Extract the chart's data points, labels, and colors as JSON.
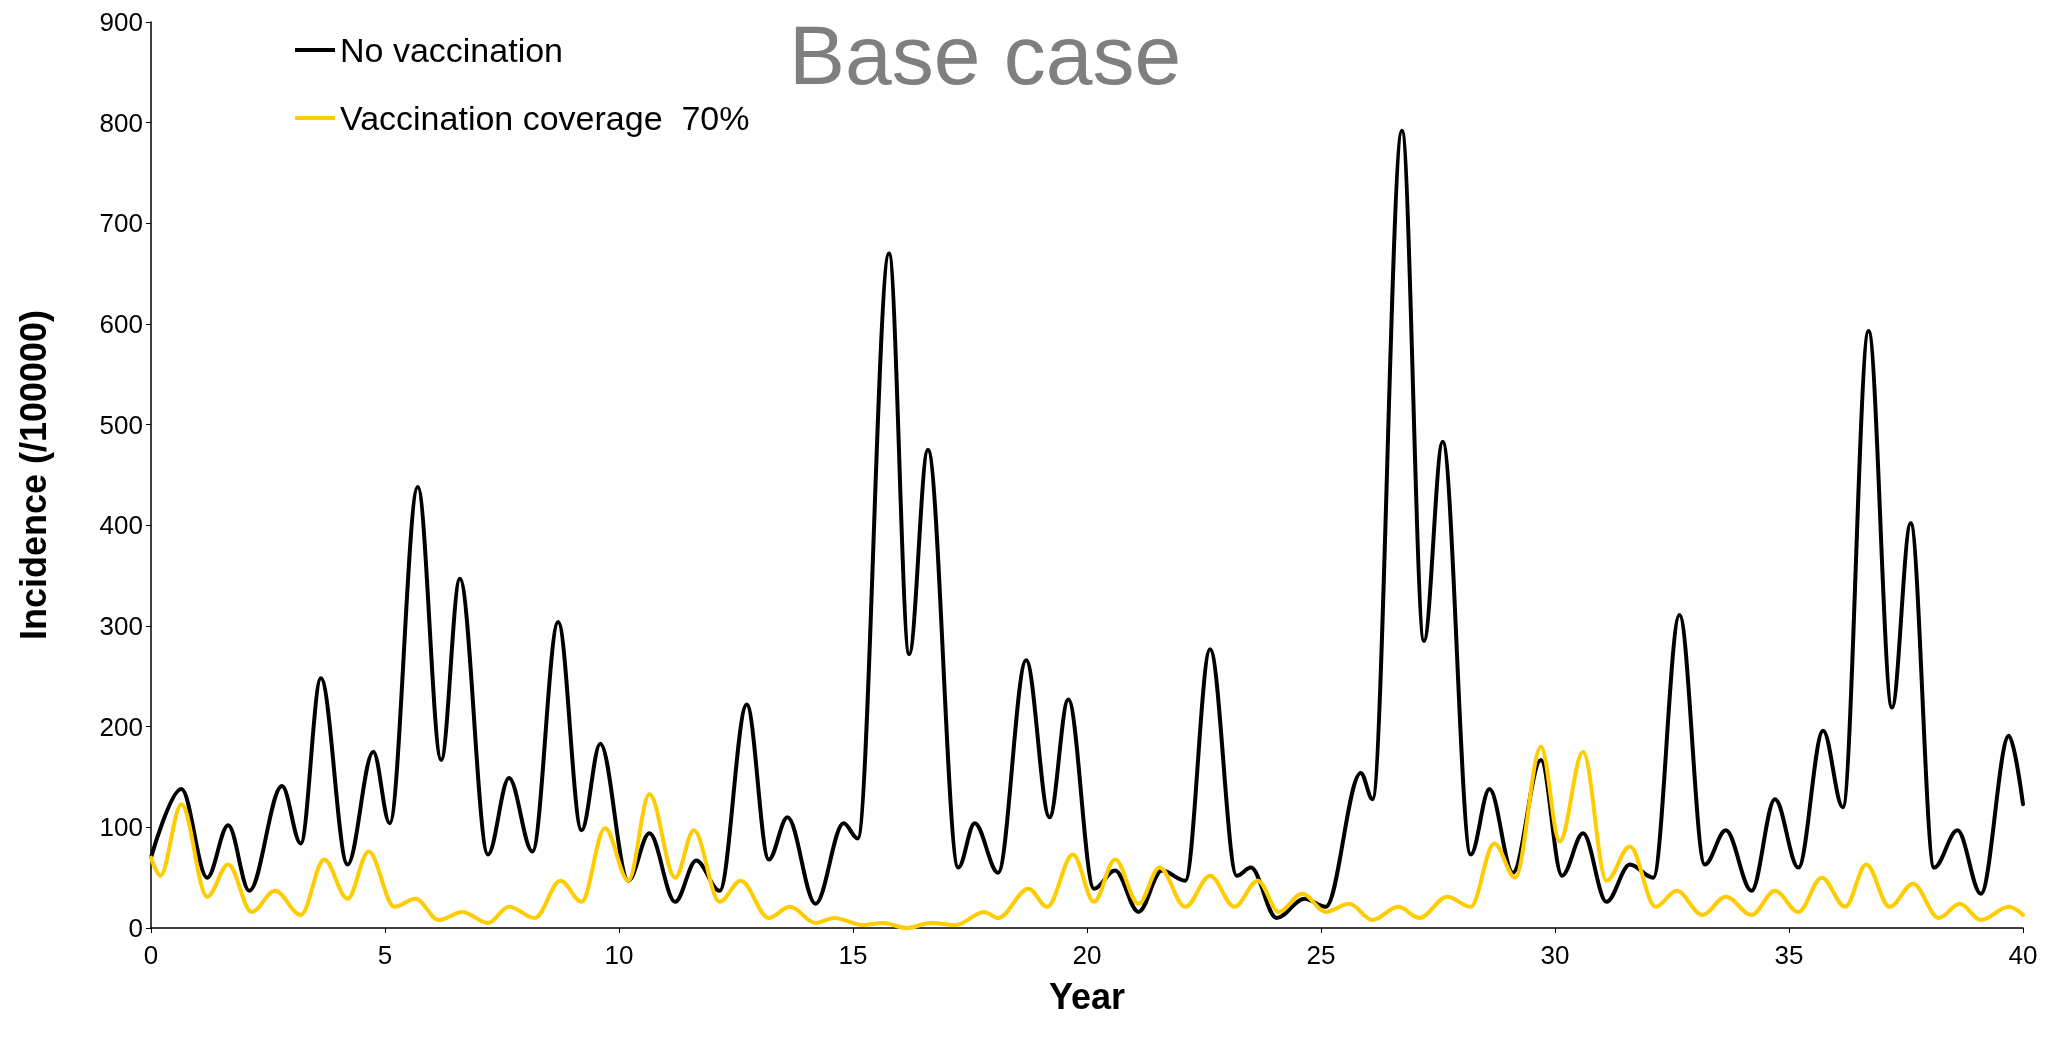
{
  "chart_data": {
    "type": "line",
    "title": "Base case",
    "xlabel": "Year",
    "ylabel": "Incidence (/100000)",
    "xlim": [
      0,
      40
    ],
    "xticks": [
      0,
      5,
      10,
      15,
      20,
      25,
      30,
      35,
      40
    ],
    "ylim": [
      0,
      900
    ],
    "yticks": [
      0,
      100,
      200,
      300,
      400,
      500,
      600,
      700,
      800,
      900
    ],
    "grid": false,
    "legend": "top left",
    "marker": "none",
    "line_style": "solid",
    "series": [
      {
        "name": "No vaccination",
        "color": "#000000",
        "x": [
          0,
          0.65,
          1.2,
          1.65,
          2.1,
          2.8,
          3.2,
          3.63,
          4.2,
          4.75,
          5.1,
          5.7,
          6.2,
          6.6,
          7.2,
          7.65,
          8.15,
          8.7,
          9.2,
          9.6,
          10.2,
          10.65,
          11.2,
          11.65,
          12.15,
          12.73,
          13.2,
          13.6,
          14.2,
          14.8,
          15.1,
          15.77,
          16.2,
          16.6,
          17.25,
          17.6,
          18.1,
          18.7,
          19.2,
          19.6,
          20.15,
          20.6,
          21.1,
          21.6,
          22.1,
          22.63,
          23.2,
          23.5,
          24.05,
          24.65,
          25.1,
          25.85,
          26.1,
          26.73,
          27.2,
          27.6,
          28.2,
          28.6,
          29.1,
          29.7,
          30.15,
          30.6,
          31.1,
          31.6,
          32.1,
          32.66,
          33.2,
          33.65,
          34.2,
          34.7,
          35.2,
          35.73,
          36.15,
          36.7,
          37.2,
          37.6,
          38.1,
          38.6,
          39.1,
          39.7,
          40
        ],
        "values": [
          70,
          138,
          50,
          102,
          37,
          141,
          84,
          248,
          63,
          175,
          104,
          438,
          167,
          347,
          73,
          149,
          76,
          304,
          97,
          183,
          47,
          94,
          26,
          67,
          37,
          222,
          68,
          110,
          24,
          104,
          89,
          670,
          272,
          475,
          60,
          104,
          55,
          266,
          110,
          227,
          39,
          57,
          16,
          57,
          47,
          277,
          52,
          60,
          10,
          29,
          21,
          154,
          128,
          792,
          285,
          483,
          73,
          138,
          55,
          167,
          52,
          94,
          26,
          63,
          50,
          311,
          63,
          97,
          37,
          128,
          60,
          196,
          120,
          593,
          219,
          402,
          60,
          97,
          34,
          191,
          123
        ]
      },
      {
        "name": "Vaccination coverage  70%",
        "color": "#ffcc00",
        "x": [
          0,
          0.2,
          0.65,
          1.2,
          1.65,
          2.15,
          2.65,
          3.2,
          3.7,
          4.2,
          4.65,
          5.2,
          5.65,
          6.15,
          6.65,
          7.2,
          7.65,
          8.2,
          8.75,
          9.2,
          9.7,
          10.2,
          10.65,
          11.2,
          11.6,
          12.15,
          12.6,
          13.2,
          13.65,
          14.2,
          14.6,
          15.2,
          15.65,
          16.15,
          16.65,
          17.2,
          17.8,
          18.1,
          18.75,
          19.15,
          19.7,
          20.15,
          20.6,
          21.1,
          21.55,
          22.1,
          22.63,
          23.15,
          23.65,
          24.1,
          24.6,
          25.1,
          25.6,
          26.1,
          26.65,
          27.1,
          27.7,
          28.2,
          28.7,
          29.15,
          29.7,
          30.1,
          30.6,
          31.1,
          31.6,
          32.15,
          32.6,
          33.15,
          33.65,
          34.2,
          34.7,
          35.2,
          35.7,
          36.2,
          36.65,
          37.15,
          37.65,
          38.2,
          38.65,
          39.1,
          39.7,
          40
        ],
        "values": [
          70,
          52,
          123,
          31,
          63,
          16,
          37,
          13,
          68,
          29,
          76,
          21,
          29,
          8,
          16,
          5,
          21,
          10,
          47,
          26,
          99,
          47,
          133,
          50,
          97,
          26,
          47,
          10,
          21,
          5,
          10,
          3,
          5,
          0,
          5,
          3,
          16,
          10,
          39,
          21,
          73,
          26,
          68,
          24,
          60,
          21,
          52,
          21,
          47,
          16,
          34,
          16,
          24,
          8,
          21,
          10,
          31,
          21,
          84,
          50,
          180,
          86,
          175,
          47,
          81,
          21,
          37,
          13,
          31,
          13,
          37,
          16,
          50,
          21,
          63,
          21,
          44,
          10,
          24,
          8,
          21,
          13
        ]
      }
    ]
  }
}
